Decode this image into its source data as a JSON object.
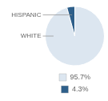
{
  "chart_data": {
    "type": "pie",
    "categories": [
      "95.7%",
      "4.3%"
    ],
    "values": [
      95.7,
      4.3
    ],
    "colors": [
      "#dce6f0",
      "#2e5f8a"
    ],
    "annotations": [
      "WHITE",
      "HISPANIC"
    ],
    "legend": "bottom"
  }
}
